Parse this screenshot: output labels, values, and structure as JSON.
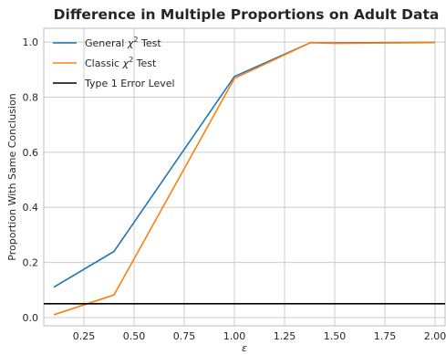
{
  "chart_data": {
    "type": "line",
    "title": "Difference in Multiple Proportions on Adult Data",
    "xlabel": "ε",
    "ylabel": "Proportion With Same Conclusion",
    "xlim": [
      0.05,
      2.05
    ],
    "ylim": [
      -0.03,
      1.05
    ],
    "xticks": [
      0.25,
      0.5,
      0.75,
      1.0,
      1.25,
      1.5,
      1.75,
      2.0
    ],
    "xtick_labels": [
      "0.25",
      "0.50",
      "0.75",
      "1.00",
      "1.25",
      "1.50",
      "1.75",
      "2.00"
    ],
    "yticks": [
      0.0,
      0.2,
      0.4,
      0.6,
      0.8,
      1.0
    ],
    "ytick_labels": [
      "0.0",
      "0.2",
      "0.4",
      "0.6",
      "0.8",
      "1.0"
    ],
    "grid": true,
    "legend_position": "top-left",
    "series": [
      {
        "name": "General χ² Test",
        "legend_label": {
          "prefix": "General ",
          "symbol": "χ",
          "superscript": "2",
          "suffix": " Test"
        },
        "color": "#1f77b4",
        "x": [
          0.1,
          0.4,
          1.0,
          1.38,
          1.5,
          2.0
        ],
        "y": [
          0.11,
          0.24,
          0.875,
          0.998,
          0.997,
          0.999
        ]
      },
      {
        "name": "Classic χ² Test",
        "legend_label": {
          "prefix": "Classic ",
          "symbol": "χ",
          "superscript": "2",
          "suffix": " Test"
        },
        "color": "#ff7f0e",
        "x": [
          0.1,
          0.4,
          1.0,
          1.38,
          1.5,
          2.0
        ],
        "y": [
          0.01,
          0.082,
          0.868,
          0.998,
          0.995,
          0.998
        ]
      }
    ],
    "hline": {
      "name": "Type 1 Error Level",
      "y": 0.05,
      "color": "#000000"
    }
  }
}
